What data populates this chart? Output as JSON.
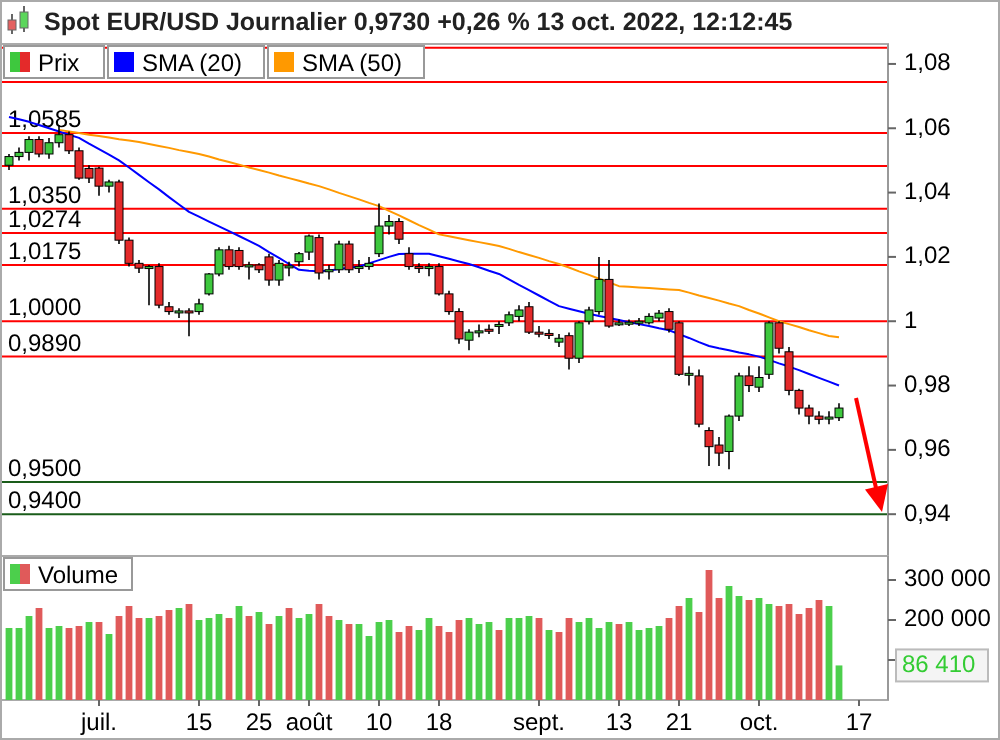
{
  "chart_data": [
    {
      "type": "candlestick",
      "title": "Spot EUR/USD Journalier 0,9730 +0,26 % 13 oct. 2022, 12:12:45",
      "categories": [
        null,
        null,
        null,
        null,
        null,
        null,
        null,
        null,
        null,
        null,
        null,
        null,
        null,
        null,
        null,
        null,
        null,
        null,
        null,
        null,
        null,
        null,
        null,
        null,
        null,
        null,
        null,
        null,
        null,
        null,
        null,
        null,
        null,
        null,
        null,
        null,
        null,
        null,
        null,
        null,
        null,
        null,
        null,
        null,
        null,
        null,
        null,
        null,
        null,
        null,
        null,
        null,
        null,
        null,
        null,
        null,
        null,
        null,
        null,
        null,
        null,
        null,
        null,
        null,
        null,
        null,
        null,
        null,
        null,
        null,
        null,
        null,
        null,
        null,
        null,
        null,
        null,
        null,
        null,
        null,
        null,
        null,
        null,
        null,
        null,
        null,
        null,
        null
      ],
      "series": [
        {
          "name": "SMA (20)",
          "type": "line",
          "color": "#0000ff",
          "values": [
            1.0635,
            1.0628,
            1.062,
            1.061,
            1.06,
            1.059,
            1.058,
            1.057,
            1.0552,
            1.0535,
            1.0518,
            1.05,
            1.0478,
            1.0455,
            1.0432,
            1.041,
            1.0386,
            1.0363,
            1.034,
            1.0325,
            1.031,
            1.0295,
            1.028,
            1.0265,
            1.025,
            1.0234,
            1.0215,
            1.0197,
            1.0178,
            1.016,
            1.0157,
            1.0155,
            1.0158,
            1.0162,
            1.0166,
            1.017,
            1.018,
            1.019,
            1.02,
            1.0209,
            1.021,
            1.021,
            1.021,
            1.0202,
            1.0194,
            1.0186,
            1.0178,
            1.0168,
            1.0157,
            1.0147,
            1.013,
            1.0113,
            1.0097,
            1.008,
            1.0063,
            1.0047,
            1.0039,
            1.0031,
            1.0023,
            1.0016,
            1.001,
            1.0004,
            0.9997,
            0.9991,
            0.9985,
            0.9978,
            0.9972,
            0.996,
            0.9948,
            0.9935,
            0.9923,
            0.9916,
            0.991,
            0.9903,
            0.9897,
            0.989,
            0.988,
            0.9869,
            0.9859,
            0.9848,
            0.9836,
            0.9824,
            0.9812,
            0.98,
            null,
            null,
            null,
            null
          ]
        },
        {
          "name": "SMA (50)",
          "type": "line",
          "color": "#ff9900",
          "values": [
            null,
            null,
            null,
            null,
            null,
            1.0595,
            1.059,
            1.0585,
            1.058,
            1.0576,
            1.0571,
            1.0566,
            1.0562,
            1.0557,
            1.0551,
            1.0545,
            1.0539,
            1.0532,
            1.0526,
            1.052,
            1.0512,
            1.0503,
            1.0495,
            1.0487,
            1.0478,
            1.047,
            1.0462,
            1.0453,
            1.0445,
            1.0437,
            1.0428,
            1.042,
            1.041,
            1.0399,
            1.0389,
            1.0379,
            1.0368,
            1.0358,
            1.0343,
            1.0329,
            1.0314,
            1.0299,
            1.0285,
            1.027,
            1.0264,
            1.0258,
            1.0252,
            1.0246,
            1.024,
            1.0234,
            1.0225,
            1.0215,
            1.0206,
            1.0197,
            1.0187,
            1.0178,
            1.0167,
            1.0155,
            1.0144,
            1.0132,
            1.0121,
            1.0109,
            1.0107,
            1.0105,
            1.0103,
            1.0101,
            1.0099,
            1.0097,
            1.0089,
            1.008,
            1.0072,
            1.0064,
            1.0055,
            1.0047,
            1.0035,
            1.0024,
            1.0012,
            1.0,
            0.9991,
            0.9982,
            0.9972,
            0.9963,
            0.9954,
            0.995,
            null,
            null,
            null,
            null
          ]
        },
        {
          "name": "Prix",
          "ohlc": [
            [
              1.0485,
              1.052,
              1.047,
              1.0512
            ],
            [
              1.0512,
              1.054,
              1.05,
              1.0525
            ],
            [
              1.0525,
              1.0575,
              1.05,
              1.0565
            ],
            [
              1.0565,
              1.0575,
              1.051,
              1.052
            ],
            [
              1.052,
              1.057,
              1.0505,
              1.0555
            ],
            [
              1.0555,
              1.061,
              1.054,
              1.058
            ],
            [
              1.058,
              1.059,
              1.052,
              1.053
            ],
            [
              1.053,
              1.054,
              1.044,
              1.0445
            ],
            [
              1.0475,
              1.0485,
              1.043,
              1.0445
            ],
            [
              1.0476,
              1.048,
              1.039,
              1.042
            ],
            [
              1.042,
              1.044,
              1.04,
              1.0433
            ],
            [
              1.0433,
              1.044,
              1.024,
              1.0252
            ],
            [
              1.0252,
              1.026,
              1.017,
              1.018
            ],
            [
              1.018,
              1.019,
              1.015,
              1.0165
            ],
            [
              1.0165,
              1.0175,
              1.005,
              1.017
            ],
            [
              1.017,
              1.018,
              1.004,
              1.005
            ],
            [
              1.0045,
              1.006,
              1.002,
              1.003
            ],
            [
              1.003,
              1.004,
              1.001,
              1.0032
            ],
            [
              1.0032,
              1.004,
              0.9953,
              1.003
            ],
            [
              1.003,
              1.007,
              1.002,
              1.0054
            ],
            [
              1.0085,
              1.015,
              1.008,
              1.0147
            ],
            [
              1.0147,
              1.023,
              1.014,
              1.0222
            ],
            [
              1.0222,
              1.0235,
              1.016,
              1.017
            ],
            [
              1.022,
              1.023,
              1.016,
              1.017
            ],
            [
              1.017,
              1.0185,
              1.013,
              1.0175
            ],
            [
              1.0175,
              1.018,
              1.015,
              1.016
            ],
            [
              1.02,
              1.021,
              1.011,
              1.0128
            ],
            [
              1.0128,
              1.019,
              1.011,
              1.018
            ],
            [
              1.017,
              1.0185,
              1.014,
              1.0172
            ],
            [
              1.0185,
              1.0215,
              1.017,
              1.021
            ],
            [
              1.0215,
              1.027,
              1.019,
              1.0265
            ],
            [
              1.026,
              1.027,
              1.013,
              1.015
            ],
            [
              1.0155,
              1.0175,
              1.013,
              1.016
            ],
            [
              1.016,
              1.025,
              1.015,
              1.024
            ],
            [
              1.024,
              1.025,
              1.015,
              1.016
            ],
            [
              1.0165,
              1.019,
              1.015,
              1.017
            ],
            [
              1.017,
              1.02,
              1.016,
              1.018
            ],
            [
              1.021,
              1.0366,
              1.02,
              1.0296
            ],
            [
              1.0296,
              1.033,
              1.027,
              1.031
            ],
            [
              1.031,
              1.032,
              1.024,
              1.0255
            ],
            [
              1.021,
              1.023,
              1.016,
              1.017
            ],
            [
              1.017,
              1.018,
              1.015,
              1.0165
            ],
            [
              1.0165,
              1.018,
              1.014,
              1.017
            ],
            [
              1.017,
              1.018,
              1.008,
              1.0085
            ],
            [
              1.0085,
              1.0095,
              1.002,
              1.003
            ],
            [
              1.003,
              1.004,
              0.993,
              0.9945
            ],
            [
              0.9941,
              0.9975,
              0.991,
              0.9966
            ],
            [
              0.9966,
              0.999,
              0.995,
              0.997
            ],
            [
              0.9975,
              0.999,
              0.996,
              0.997
            ],
            [
              0.9985,
              1.0,
              0.996,
              0.999
            ],
            [
              0.9995,
              1.003,
              0.9985,
              1.002
            ],
            [
              1.0015,
              1.005,
              1.0,
              1.0035
            ],
            [
              1.0045,
              1.006,
              0.996,
              0.9966
            ],
            [
              0.9966,
              0.9985,
              0.995,
              0.9962
            ],
            [
              0.9962,
              0.9975,
              0.9945,
              0.996
            ],
            [
              0.9935,
              0.996,
              0.992,
              0.9947
            ],
            [
              0.9955,
              0.9965,
              0.985,
              0.9885
            ],
            [
              0.9885,
              1.0,
              0.987,
              0.9995
            ],
            [
              1.0,
              1.0045,
              0.999,
              1.0035
            ],
            [
              1.003,
              1.02,
              1.002,
              1.013
            ],
            [
              1.013,
              1.019,
              0.998,
              0.9985
            ],
            [
              0.9995,
              1.0005,
              0.9985,
              0.9995
            ],
            [
              0.9995,
              1.0005,
              0.9985,
              0.9997
            ],
            [
              0.9998,
              1.001,
              0.9985,
              1.0
            ],
            [
              0.9995,
              1.0025,
              0.999,
              1.0015
            ],
            [
              1.001,
              1.0035,
              1.0,
              1.0025
            ],
            [
              1.003,
              1.004,
              0.9965,
              0.9975
            ],
            [
              0.9995,
              1.0,
              0.983,
              0.9835
            ],
            [
              0.9835,
              0.986,
              0.98,
              0.9838
            ],
            [
              0.983,
              0.985,
              0.967,
              0.968
            ],
            [
              0.966,
              0.967,
              0.955,
              0.961
            ],
            [
              0.9615,
              0.964,
              0.955,
              0.959
            ],
            [
              0.9595,
              0.971,
              0.954,
              0.9705
            ],
            [
              0.9705,
              0.984,
              0.969,
              0.983
            ],
            [
              0.983,
              0.986,
              0.978,
              0.98
            ],
            [
              0.9795,
              0.986,
              0.978,
              0.9825
            ],
            [
              0.9835,
              1.0,
              0.982,
              0.9995
            ],
            [
              0.9995,
              1.0,
              0.99,
              0.9916
            ],
            [
              0.9905,
              0.992,
              0.977,
              0.9785
            ],
            [
              0.9785,
              0.979,
              0.971,
              0.973
            ],
            [
              0.973,
              0.974,
              0.968,
              0.9705
            ],
            [
              0.9705,
              0.972,
              0.968,
              0.9695
            ],
            [
              0.97,
              0.972,
              0.968,
              0.9702
            ],
            [
              0.97,
              0.9745,
              0.969,
              0.973
            ],
            null,
            null,
            null,
            null
          ]
        }
      ],
      "ylim": [
        0.927,
        1.0862
      ],
      "yticks": [
        {
          "value": 1.08,
          "label": "1,08"
        },
        {
          "value": 1.06,
          "label": "1,06"
        },
        {
          "value": 1.04,
          "label": "1,04"
        },
        {
          "value": 1.02,
          "label": "1,02"
        },
        {
          "value": 1,
          "label": "1"
        },
        {
          "value": 0.98,
          "label": "0,98"
        },
        {
          "value": 0.96,
          "label": "0,96"
        },
        {
          "value": 0.94,
          "label": "0,94"
        }
      ],
      "ref_lines": [
        {
          "axis": "y",
          "value": 1.085,
          "label": null,
          "color": "#ff0000"
        },
        {
          "axis": "y",
          "value": 1.0744,
          "label": null,
          "color": "#ff0000"
        },
        {
          "axis": "y",
          "value": 1.0585,
          "label": "1,0585",
          "color": "#ff0000"
        },
        {
          "axis": "y",
          "value": 1.0483,
          "label": null,
          "color": "#ff0000"
        },
        {
          "axis": "y",
          "value": 1.035,
          "label": "1,0350",
          "color": "#ff0000"
        },
        {
          "axis": "y",
          "value": 1.0274,
          "label": "1,0274",
          "color": "#ff0000"
        },
        {
          "axis": "y",
          "value": 1.0175,
          "label": "1,0175",
          "color": "#ff0000"
        },
        {
          "axis": "y",
          "value": 1.0,
          "label": "1,0000",
          "color": "#ff0000"
        },
        {
          "axis": "y",
          "value": 0.989,
          "label": "0,9890",
          "color": "#ff0000"
        },
        {
          "axis": "y",
          "value": 0.95,
          "label": "0,9500",
          "color": "#1a5c1a"
        },
        {
          "axis": "y",
          "value": 0.94,
          "label": "0,9400",
          "color": "#1a5c1a"
        }
      ],
      "legend": "top left",
      "tick_labels": "y"
    },
    {
      "type": "bar",
      "categories": [
        null,
        null,
        null,
        null,
        null,
        null,
        null,
        null,
        null,
        "juil.",
        null,
        null,
        null,
        null,
        null,
        null,
        null,
        null,
        null,
        "15",
        null,
        null,
        null,
        null,
        null,
        "25",
        null,
        null,
        null,
        null,
        "août",
        null,
        null,
        null,
        null,
        null,
        null,
        "10",
        null,
        null,
        null,
        null,
        null,
        "18",
        null,
        null,
        null,
        null,
        null,
        null,
        null,
        null,
        null,
        "sept.",
        null,
        null,
        null,
        null,
        null,
        null,
        null,
        "13",
        null,
        null,
        null,
        null,
        null,
        "21",
        null,
        null,
        null,
        null,
        null,
        null,
        null,
        "oct.",
        null,
        null,
        null,
        null,
        null,
        null,
        null,
        null,
        null,
        "17",
        null,
        null
      ],
      "series": [
        {
          "name": "Volume",
          "values": [
            180000,
            180000,
            210000,
            230000,
            180000,
            185000,
            180000,
            185000,
            195000,
            195000,
            165000,
            210000,
            235000,
            205000,
            205000,
            210000,
            225000,
            230000,
            240000,
            200000,
            205000,
            215000,
            205000,
            235000,
            210000,
            220000,
            190000,
            210000,
            230000,
            205000,
            215000,
            240000,
            210000,
            200000,
            190000,
            190000,
            160000,
            195000,
            200000,
            170000,
            185000,
            175000,
            205000,
            185000,
            170000,
            200000,
            205000,
            190000,
            195000,
            175000,
            205000,
            205000,
            210000,
            205000,
            175000,
            170000,
            205000,
            195000,
            205000,
            180000,
            195000,
            190000,
            195000,
            175000,
            180000,
            185000,
            205000,
            235000,
            255000,
            220000,
            325000,
            255000,
            285000,
            260000,
            250000,
            255000,
            240000,
            235000,
            240000,
            215000,
            230000,
            250000,
            235000,
            86410,
            null,
            null,
            null,
            null
          ],
          "colors": [
            "#4ccf4c",
            "#4ccf4c",
            "#4ccf4c",
            "#e05a5a",
            "#4ccf4c",
            "#4ccf4c",
            "#e05a5a",
            "#e05a5a",
            "#4ccf4c",
            "#e05a5a",
            "#4ccf4c",
            "#e05a5a",
            "#e05a5a",
            "#e05a5a",
            "#4ccf4c",
            "#e05a5a",
            "#e05a5a",
            "#4ccf4c",
            "#e05a5a",
            "#4ccf4c",
            "#4ccf4c",
            "#4ccf4c",
            "#e05a5a",
            "#4ccf4c",
            "#e05a5a",
            "#4ccf4c",
            "#e05a5a",
            "#4ccf4c",
            "#e05a5a",
            "#4ccf4c",
            "#4ccf4c",
            "#e05a5a",
            "#e05a5a",
            "#4ccf4c",
            "#e05a5a",
            "#4ccf4c",
            "#4ccf4c",
            "#4ccf4c",
            "#4ccf4c",
            "#e05a5a",
            "#e05a5a",
            "#4ccf4c",
            "#4ccf4c",
            "#e05a5a",
            "#e05a5a",
            "#e05a5a",
            "#4ccf4c",
            "#4ccf4c",
            "#4ccf4c",
            "#e05a5a",
            "#4ccf4c",
            "#4ccf4c",
            "#4ccf4c",
            "#e05a5a",
            "#4ccf4c",
            "#e05a5a",
            "#e05a5a",
            "#4ccf4c",
            "#4ccf4c",
            "#4ccf4c",
            "#4ccf4c",
            "#e05a5a",
            "#4ccf4c",
            "#4ccf4c",
            "#4ccf4c",
            "#4ccf4c",
            "#e05a5a",
            "#e05a5a",
            "#4ccf4c",
            "#e05a5a",
            "#e05a5a",
            "#e05a5a",
            "#4ccf4c",
            "#4ccf4c",
            "#e05a5a",
            "#4ccf4c",
            "#4ccf4c",
            "#e05a5a",
            "#e05a5a",
            "#e05a5a",
            "#e05a5a",
            "#e05a5a",
            "#4ccf4c",
            "#4ccf4c",
            null,
            null,
            null,
            null
          ]
        }
      ],
      "ylim": [
        0,
        360000
      ],
      "yticks": [
        {
          "value": 100000,
          "label": null
        },
        {
          "value": 200000,
          "label": "200 000"
        },
        {
          "value": 300000,
          "label": "300 000"
        }
      ],
      "annotations": [
        "86 410"
      ],
      "legend": "top left"
    }
  ]
}
